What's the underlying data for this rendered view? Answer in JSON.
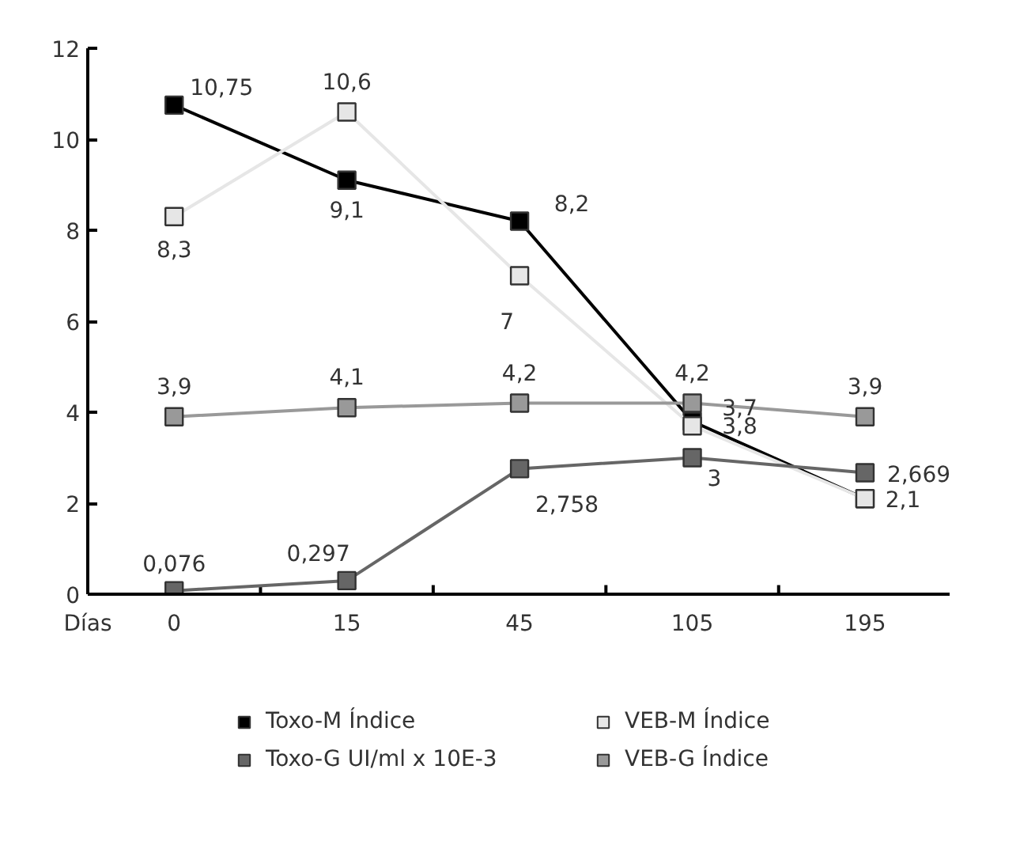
{
  "chart_data": {
    "type": "line",
    "xlabel": "Días",
    "categories": [
      "0",
      "15",
      "45",
      "105",
      "195"
    ],
    "ylim": [
      0,
      12
    ],
    "yticks": [
      0,
      2,
      4,
      6,
      8,
      10,
      12
    ],
    "grid": false,
    "legend": "bottom",
    "marker": "square",
    "line_style": "solid",
    "series": [
      {
        "name": "Toxo-M Índice",
        "color": "#000000",
        "values": [
          10.75,
          9.1,
          8.2,
          3.8,
          2.1
        ],
        "value_labels": [
          "10,75",
          "9,1",
          "8,2",
          "3,8",
          null
        ]
      },
      {
        "name": "VEB-M Índice",
        "color": "#e6e6e6",
        "values": [
          8.3,
          10.6,
          7,
          3.7,
          2.1
        ],
        "value_labels": [
          "8,3",
          "10,6",
          "7",
          "3,7",
          "2,1"
        ]
      },
      {
        "name": "Toxo-G UI/ml x 10E-3",
        "color": "#666666",
        "values": [
          0.076,
          0.297,
          2.758,
          3,
          2.669
        ],
        "value_labels": [
          "0,076",
          "0,297",
          "2,758",
          "3",
          "2,669"
        ]
      },
      {
        "name": "VEB-G Índice",
        "color": "#999999",
        "values": [
          3.9,
          4.1,
          4.2,
          4.2,
          3.9
        ],
        "value_labels": [
          "3,9",
          "4,1",
          "4,2",
          "4,2",
          "3,9"
        ]
      }
    ]
  }
}
